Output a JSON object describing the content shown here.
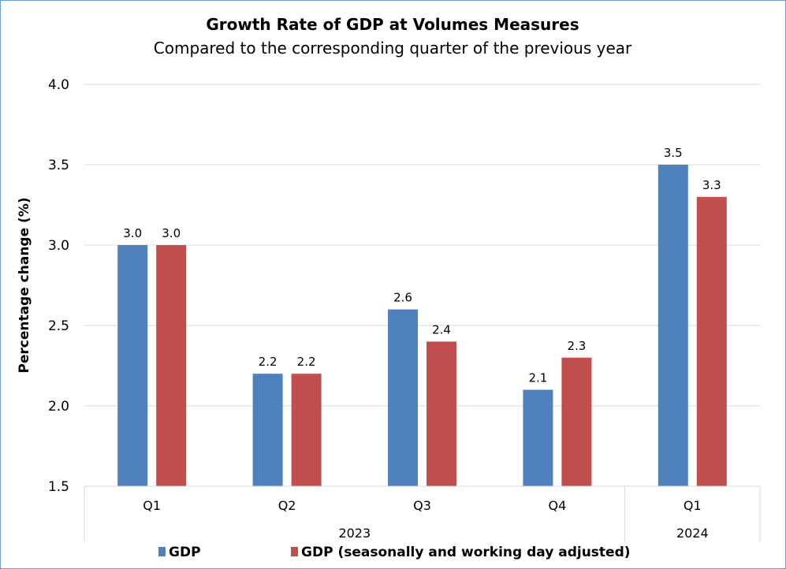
{
  "chart_data": {
    "type": "bar",
    "title": "Growth Rate of GDP at Volumes Measures",
    "subtitle": "Compared to the corresponding quarter of the previous year",
    "xlabel": "",
    "ylabel": "Percentage change (%)",
    "ylim": [
      1.5,
      4.0
    ],
    "yticks": [
      "1.5",
      "2.0",
      "2.5",
      "3.0",
      "3.5",
      "4.0"
    ],
    "grid": true,
    "legend_position": "bottom",
    "categories": [
      "Q1",
      "Q2",
      "Q3",
      "Q4",
      "Q1"
    ],
    "category_groups": [
      {
        "label": "2023",
        "span": 4
      },
      {
        "label": "2024",
        "span": 1
      }
    ],
    "series": [
      {
        "name": "GDP",
        "color": "#4f81bd",
        "values": [
          3.0,
          2.2,
          2.6,
          2.1,
          3.5
        ],
        "labels": [
          "3.0",
          "2.2",
          "2.6",
          "2.1",
          "3.5"
        ]
      },
      {
        "name": "GDP (seasonally and working day adjusted)",
        "color": "#c0504d",
        "values": [
          3.0,
          2.2,
          2.4,
          2.3,
          3.3
        ],
        "labels": [
          "3.0",
          "2.2",
          "2.4",
          "2.3",
          "3.3"
        ]
      }
    ]
  }
}
